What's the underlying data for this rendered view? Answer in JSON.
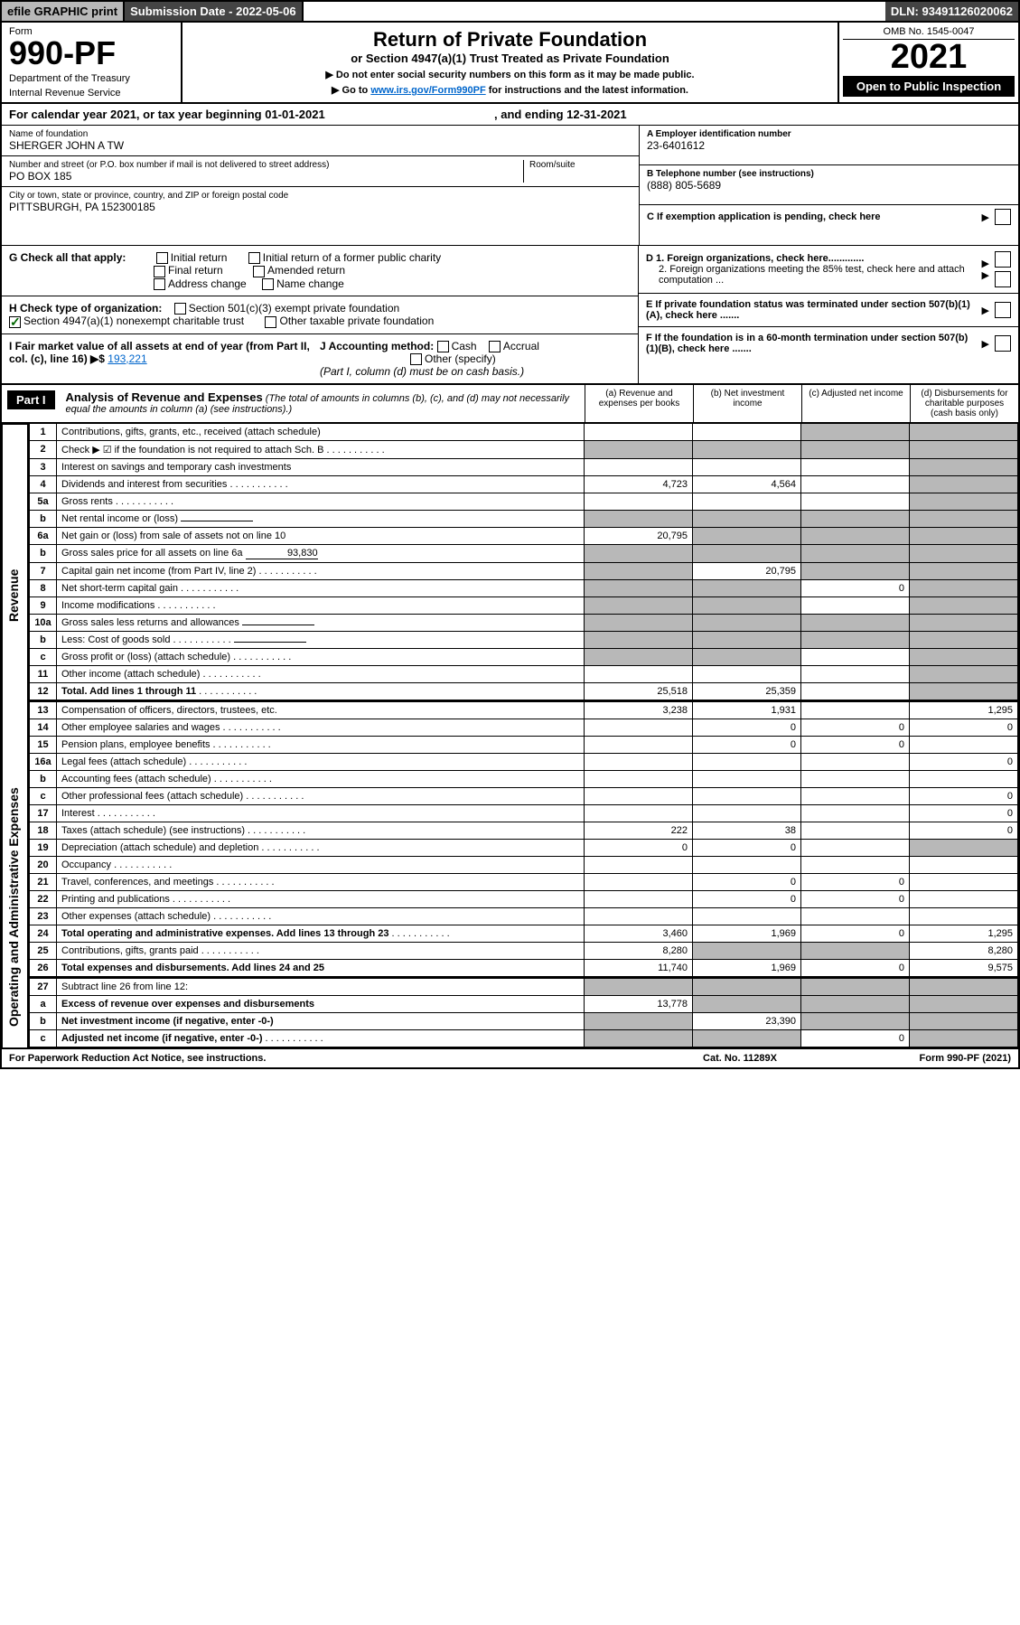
{
  "topbar": {
    "efile": "efile GRAPHIC print",
    "subdate_lbl": "Submission Date - 2022-05-06",
    "dln": "DLN: 93491126020062"
  },
  "header": {
    "form": "Form",
    "num": "990-PF",
    "dept1": "Department of the Treasury",
    "dept2": "Internal Revenue Service",
    "title": "Return of Private Foundation",
    "sub": "or Section 4947(a)(1) Trust Treated as Private Foundation",
    "inst1": "▶ Do not enter social security numbers on this form as it may be made public.",
    "inst2": "▶ Go to www.irs.gov/Form990PF for instructions and the latest information.",
    "inst2_link": "www.irs.gov/Form990PF",
    "omb": "OMB No. 1545-0047",
    "year": "2021",
    "open": "Open to Public Inspection"
  },
  "calendar": {
    "text": "For calendar year 2021, or tax year beginning 01-01-2021",
    "ending": ", and ending 12-31-2021"
  },
  "entity": {
    "name_lbl": "Name of foundation",
    "name": "SHERGER JOHN A TW",
    "addr_lbl": "Number and street (or P.O. box number if mail is not delivered to street address)",
    "addr": "PO BOX 185",
    "room_lbl": "Room/suite",
    "city_lbl": "City or town, state or province, country, and ZIP or foreign postal code",
    "city": "PITTSBURGH, PA  152300185",
    "ein_lbl": "A Employer identification number",
    "ein": "23-6401612",
    "phone_lbl": "B Telephone number (see instructions)",
    "phone": "(888) 805-5689"
  },
  "boxes": {
    "c": "C If exemption application is pending, check here",
    "d1": "D 1. Foreign organizations, check here.............",
    "d2": "2. Foreign organizations meeting the 85% test, check here and attach computation ...",
    "e": "E  If private foundation status was terminated under section 507(b)(1)(A), check here .......",
    "f": "F  If the foundation is in a 60-month termination under section 507(b)(1)(B), check here .......",
    "g_lbl": "G Check all that apply:",
    "g_opts": [
      "Initial return",
      "Initial return of a former public charity",
      "Final return",
      "Amended return",
      "Address change",
      "Name change"
    ],
    "h_lbl": "H Check type of organization:",
    "h_opts": [
      "Section 501(c)(3) exempt private foundation",
      "Section 4947(a)(1) nonexempt charitable trust",
      "Other taxable private foundation"
    ],
    "i_lbl": "I Fair market value of all assets at end of year (from Part II, col. (c), line 16) ▶$",
    "i_val": "193,221",
    "j_lbl": "J Accounting method:",
    "j_opts": [
      "Cash",
      "Accrual",
      "Other (specify)"
    ],
    "j_note": "(Part I, column (d) must be on cash basis.)"
  },
  "part1": {
    "label": "Part I",
    "title": "Analysis of Revenue and Expenses",
    "note": "(The total of amounts in columns (b), (c), and (d) may not necessarily equal the amounts in column (a) (see instructions).)",
    "cols": {
      "a": "(a) Revenue and expenses per books",
      "b": "(b) Net investment income",
      "c": "(c) Adjusted net income",
      "d": "(d) Disbursements for charitable purposes (cash basis only)"
    }
  },
  "sides": {
    "rev": "Revenue",
    "exp": "Operating and Administrative Expenses"
  },
  "rows": [
    {
      "n": "1",
      "l": "Contributions, gifts, grants, etc., received (attach schedule)",
      "a": "",
      "b": "",
      "c": "shade",
      "d": "shade"
    },
    {
      "n": "2",
      "l": "Check ▶ ☑ if the foundation is not required to attach Sch. B",
      "a": "shade",
      "b": "shade",
      "c": "shade",
      "d": "shade",
      "dots": true
    },
    {
      "n": "3",
      "l": "Interest on savings and temporary cash investments",
      "a": "",
      "b": "",
      "c": "",
      "d": "shade"
    },
    {
      "n": "4",
      "l": "Dividends and interest from securities",
      "a": "4,723",
      "b": "4,564",
      "c": "",
      "d": "shade",
      "dots": true
    },
    {
      "n": "5a",
      "l": "Gross rents",
      "a": "",
      "b": "",
      "c": "",
      "d": "shade",
      "dots": true
    },
    {
      "n": "b",
      "l": "Net rental income or (loss)",
      "a": "shade",
      "b": "shade",
      "c": "shade",
      "d": "shade",
      "inline": true
    },
    {
      "n": "6a",
      "l": "Net gain or (loss) from sale of assets not on line 10",
      "a": "20,795",
      "b": "shade",
      "c": "shade",
      "d": "shade"
    },
    {
      "n": "b",
      "l": "Gross sales price for all assets on line 6a",
      "a": "shade",
      "b": "shade",
      "c": "shade",
      "d": "shade",
      "inline": true,
      "ival": "93,830"
    },
    {
      "n": "7",
      "l": "Capital gain net income (from Part IV, line 2)",
      "a": "shade",
      "b": "20,795",
      "c": "shade",
      "d": "shade",
      "dots": true
    },
    {
      "n": "8",
      "l": "Net short-term capital gain",
      "a": "shade",
      "b": "shade",
      "c": "0",
      "d": "shade",
      "dots": true
    },
    {
      "n": "9",
      "l": "Income modifications",
      "a": "shade",
      "b": "shade",
      "c": "",
      "d": "shade",
      "dots": true
    },
    {
      "n": "10a",
      "l": "Gross sales less returns and allowances",
      "a": "shade",
      "b": "shade",
      "c": "shade",
      "d": "shade",
      "inline": true
    },
    {
      "n": "b",
      "l": "Less: Cost of goods sold",
      "a": "shade",
      "b": "shade",
      "c": "shade",
      "d": "shade",
      "inline": true,
      "dots": true
    },
    {
      "n": "c",
      "l": "Gross profit or (loss) (attach schedule)",
      "a": "shade",
      "b": "shade",
      "c": "",
      "d": "shade",
      "dots": true
    },
    {
      "n": "11",
      "l": "Other income (attach schedule)",
      "a": "",
      "b": "",
      "c": "",
      "d": "shade",
      "dots": true
    },
    {
      "n": "12",
      "l": "Total. Add lines 1 through 11",
      "a": "25,518",
      "b": "25,359",
      "c": "",
      "d": "shade",
      "bold": true,
      "dots": true
    }
  ],
  "rows2": [
    {
      "n": "13",
      "l": "Compensation of officers, directors, trustees, etc.",
      "a": "3,238",
      "b": "1,931",
      "c": "",
      "d": "1,295"
    },
    {
      "n": "14",
      "l": "Other employee salaries and wages",
      "a": "",
      "b": "0",
      "c": "0",
      "d": "0",
      "dots": true
    },
    {
      "n": "15",
      "l": "Pension plans, employee benefits",
      "a": "",
      "b": "0",
      "c": "0",
      "d": "",
      "dots": true
    },
    {
      "n": "16a",
      "l": "Legal fees (attach schedule)",
      "a": "",
      "b": "",
      "c": "",
      "d": "0",
      "dots": true
    },
    {
      "n": "b",
      "l": "Accounting fees (attach schedule)",
      "a": "",
      "b": "",
      "c": "",
      "d": "",
      "dots": true
    },
    {
      "n": "c",
      "l": "Other professional fees (attach schedule)",
      "a": "",
      "b": "",
      "c": "",
      "d": "0",
      "dots": true
    },
    {
      "n": "17",
      "l": "Interest",
      "a": "",
      "b": "",
      "c": "",
      "d": "0",
      "dots": true
    },
    {
      "n": "18",
      "l": "Taxes (attach schedule) (see instructions)",
      "a": "222",
      "b": "38",
      "c": "",
      "d": "0",
      "dots": true
    },
    {
      "n": "19",
      "l": "Depreciation (attach schedule) and depletion",
      "a": "0",
      "b": "0",
      "c": "",
      "d": "shade",
      "dots": true
    },
    {
      "n": "20",
      "l": "Occupancy",
      "a": "",
      "b": "",
      "c": "",
      "d": "",
      "dots": true
    },
    {
      "n": "21",
      "l": "Travel, conferences, and meetings",
      "a": "",
      "b": "0",
      "c": "0",
      "d": "",
      "dots": true
    },
    {
      "n": "22",
      "l": "Printing and publications",
      "a": "",
      "b": "0",
      "c": "0",
      "d": "",
      "dots": true
    },
    {
      "n": "23",
      "l": "Other expenses (attach schedule)",
      "a": "",
      "b": "",
      "c": "",
      "d": "",
      "dots": true
    },
    {
      "n": "24",
      "l": "Total operating and administrative expenses. Add lines 13 through 23",
      "a": "3,460",
      "b": "1,969",
      "c": "0",
      "d": "1,295",
      "bold": true,
      "dots": true
    },
    {
      "n": "25",
      "l": "Contributions, gifts, grants paid",
      "a": "8,280",
      "b": "shade",
      "c": "shade",
      "d": "8,280",
      "dots": true
    },
    {
      "n": "26",
      "l": "Total expenses and disbursements. Add lines 24 and 25",
      "a": "11,740",
      "b": "1,969",
      "c": "0",
      "d": "9,575",
      "bold": true
    }
  ],
  "rows3": [
    {
      "n": "27",
      "l": "Subtract line 26 from line 12:",
      "a": "shade",
      "b": "shade",
      "c": "shade",
      "d": "shade"
    },
    {
      "n": "a",
      "l": "Excess of revenue over expenses and disbursements",
      "a": "13,778",
      "b": "shade",
      "c": "shade",
      "d": "shade",
      "bold": true
    },
    {
      "n": "b",
      "l": "Net investment income (if negative, enter -0-)",
      "a": "shade",
      "b": "23,390",
      "c": "shade",
      "d": "shade",
      "bold": true
    },
    {
      "n": "c",
      "l": "Adjusted net income (if negative, enter -0-)",
      "a": "shade",
      "b": "shade",
      "c": "0",
      "d": "shade",
      "bold": true,
      "dots": true
    }
  ],
  "footer": {
    "l": "For Paperwork Reduction Act Notice, see instructions.",
    "m": "Cat. No. 11289X",
    "r": "Form 990-PF (2021)"
  }
}
